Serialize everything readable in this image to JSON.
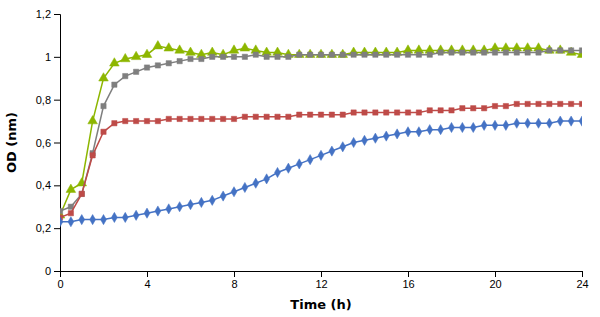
{
  "chart_data": {
    "type": "line",
    "xlabel": "Time (h)",
    "ylabel": "OD (nm)",
    "x": [
      0,
      0.5,
      1.0,
      1.5,
      2.0,
      2.5,
      3.0,
      3.5,
      4.0,
      4.5,
      5.0,
      5.5,
      6.0,
      6.5,
      7.0,
      7.5,
      8.0,
      8.5,
      9.0,
      9.5,
      10.0,
      10.5,
      11.0,
      11.5,
      12.0,
      12.5,
      13.0,
      13.5,
      14.0,
      14.5,
      15.0,
      15.5,
      16.0,
      16.5,
      17.0,
      17.5,
      18.0,
      18.5,
      19.0,
      19.5,
      20.0,
      20.5,
      21.0,
      21.5,
      22.0,
      22.5,
      23.0,
      23.5,
      24.0
    ],
    "xlim": [
      0,
      24
    ],
    "xticks": [
      0,
      4,
      8,
      12,
      16,
      20,
      24
    ],
    "ylim": [
      0,
      1.2
    ],
    "yticks": [
      0,
      {
        "value": 0.2,
        "label": "0,2"
      },
      {
        "value": 0.4,
        "label": "0,4"
      },
      {
        "value": 0.6,
        "label": "0,6"
      },
      {
        "value": 0.8,
        "label": "0,8"
      },
      1,
      {
        "value": 1.2,
        "label": "1,2"
      }
    ],
    "grid": false,
    "series": [
      {
        "color": "#8db600",
        "marker": "triangle",
        "values": [
          0.26,
          0.38,
          0.41,
          0.7,
          0.9,
          0.97,
          0.99,
          1.0,
          1.01,
          1.05,
          1.04,
          1.03,
          1.02,
          1.01,
          1.02,
          1.01,
          1.03,
          1.04,
          1.03,
          1.02,
          1.02,
          1.01,
          1.01,
          1.01,
          1.01,
          1.01,
          1.01,
          1.02,
          1.02,
          1.02,
          1.02,
          1.02,
          1.03,
          1.03,
          1.03,
          1.03,
          1.03,
          1.03,
          1.03,
          1.03,
          1.04,
          1.04,
          1.04,
          1.04,
          1.04,
          1.03,
          1.03,
          1.02,
          1.01
        ]
      },
      {
        "color": "#7f7f7f",
        "marker": "square",
        "values": [
          0.28,
          0.3,
          0.36,
          0.55,
          0.77,
          0.87,
          0.91,
          0.93,
          0.95,
          0.96,
          0.97,
          0.98,
          0.99,
          0.99,
          1.0,
          1.0,
          1.0,
          1.0,
          1.01,
          1.0,
          1.0,
          1.0,
          1.01,
          1.01,
          1.01,
          1.01,
          1.01,
          1.01,
          1.01,
          1.01,
          1.01,
          1.01,
          1.01,
          1.01,
          1.01,
          1.02,
          1.02,
          1.02,
          1.02,
          1.02,
          1.02,
          1.02,
          1.02,
          1.02,
          1.02,
          1.03,
          1.03,
          1.03,
          1.03
        ]
      },
      {
        "color": "#be4b48",
        "marker": "square",
        "values": [
          0.25,
          0.27,
          0.36,
          0.54,
          0.65,
          0.69,
          0.7,
          0.7,
          0.7,
          0.7,
          0.71,
          0.71,
          0.71,
          0.71,
          0.71,
          0.71,
          0.71,
          0.72,
          0.72,
          0.72,
          0.72,
          0.72,
          0.73,
          0.73,
          0.73,
          0.73,
          0.73,
          0.74,
          0.74,
          0.74,
          0.74,
          0.74,
          0.74,
          0.74,
          0.75,
          0.75,
          0.75,
          0.76,
          0.76,
          0.76,
          0.77,
          0.77,
          0.78,
          0.78,
          0.78,
          0.78,
          0.78,
          0.78,
          0.78
        ]
      },
      {
        "color": "#4472c4",
        "marker": "diamond",
        "values": [
          0.23,
          0.23,
          0.24,
          0.24,
          0.24,
          0.25,
          0.25,
          0.26,
          0.27,
          0.28,
          0.29,
          0.3,
          0.31,
          0.32,
          0.33,
          0.35,
          0.37,
          0.39,
          0.41,
          0.43,
          0.46,
          0.48,
          0.5,
          0.52,
          0.54,
          0.56,
          0.58,
          0.6,
          0.61,
          0.62,
          0.63,
          0.64,
          0.65,
          0.65,
          0.66,
          0.66,
          0.67,
          0.67,
          0.67,
          0.68,
          0.68,
          0.68,
          0.69,
          0.69,
          0.69,
          0.69,
          0.7,
          0.7,
          0.7
        ]
      }
    ]
  }
}
